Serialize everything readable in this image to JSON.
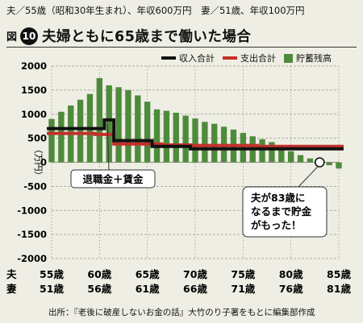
{
  "header": {
    "text": "夫／55歳（昭和30年生まれ）、年収600万円　妻／51歳、年収100万円"
  },
  "figure": {
    "label": "図",
    "number": "10",
    "title": "夫婦ともに65歳まで働いた場合"
  },
  "footer": {
    "source": "出所：『老後に破産しないお金の話』大竹のり子著をもとに編集部作成"
  },
  "colors": {
    "income": "#111111",
    "expense": "#c4302b",
    "savings": "#4e8a3c",
    "background": "#efeee4",
    "grid": "#9a9a8c"
  },
  "chart_data": {
    "type": "bar",
    "unit_label": "（万円）",
    "ylim": [
      -2000,
      2000
    ],
    "yticks": [
      -2000,
      -1500,
      -1000,
      -500,
      0,
      500,
      1000,
      1500,
      2000
    ],
    "grid": true,
    "legend_position": "top-right",
    "x_row_labels": [
      "夫",
      "妻"
    ],
    "x_tick_labels_husband": [
      "55歳",
      "60歳",
      "65歳",
      "70歳",
      "75歳",
      "80歳",
      "85歳"
    ],
    "x_tick_labels_wife": [
      "51歳",
      "56歳",
      "61歳",
      "66歳",
      "71歳",
      "76歳",
      "81歳"
    ],
    "x_start_age_husband": 55,
    "x": [
      55,
      56,
      57,
      58,
      59,
      60,
      61,
      62,
      63,
      64,
      65,
      66,
      67,
      68,
      69,
      70,
      71,
      72,
      73,
      74,
      75,
      76,
      77,
      78,
      79,
      80,
      81,
      82,
      83,
      84,
      85
    ],
    "series": [
      {
        "name": "収入合計",
        "kind": "line",
        "values": [
          700,
          700,
          700,
          700,
          700,
          700,
          880,
          450,
          450,
          450,
          450,
          330,
          330,
          330,
          330,
          280,
          280,
          280,
          280,
          280,
          280,
          280,
          280,
          280,
          280,
          280,
          280,
          280,
          280,
          280,
          280
        ]
      },
      {
        "name": "支出合計",
        "kind": "line",
        "values": [
          600,
          600,
          600,
          600,
          600,
          580,
          580,
          380,
          380,
          380,
          380,
          380,
          360,
          360,
          360,
          350,
          350,
          350,
          350,
          350,
          350,
          350,
          330,
          330,
          330,
          330,
          330,
          330,
          330,
          330,
          330
        ]
      },
      {
        "name": "貯蓄残高",
        "kind": "bar",
        "values": [
          900,
          1050,
          1180,
          1300,
          1420,
          1750,
          1600,
          1560,
          1500,
          1390,
          1260,
          1100,
          1070,
          1030,
          970,
          910,
          840,
          800,
          740,
          680,
          610,
          540,
          480,
          420,
          340,
          230,
          150,
          80,
          20,
          -60,
          -130
        ]
      }
    ],
    "annotations": [
      {
        "text": "退職金＋賃金",
        "age": 61
      },
      {
        "text": "夫が83歳になるまで貯金がもった！",
        "age": 83
      }
    ]
  }
}
